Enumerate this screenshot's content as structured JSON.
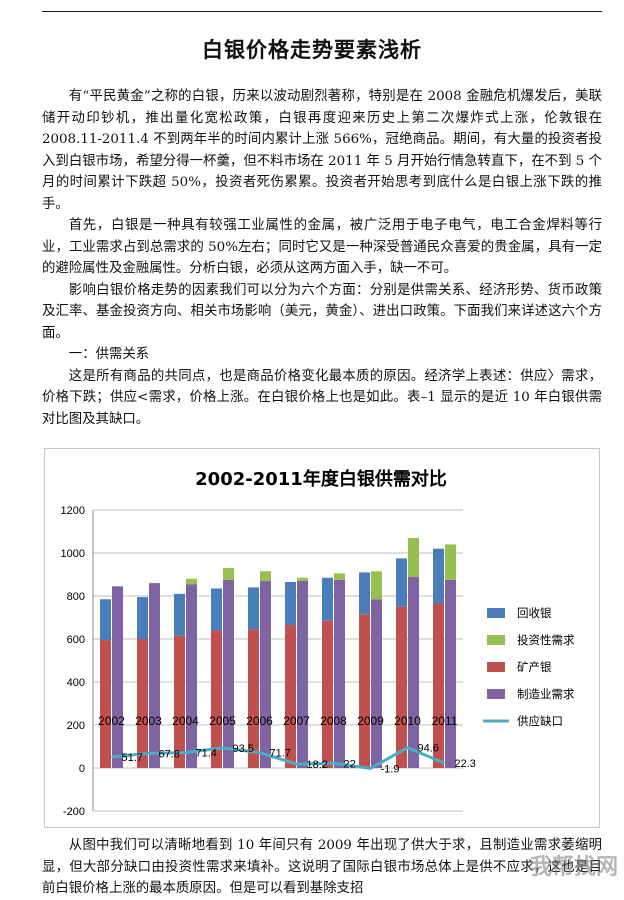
{
  "doc": {
    "title": "白银价格走势要素浅析",
    "paragraphs": [
      "有“平民黄金”之称的白银，历来以波动剧烈著称，特别是在 2008 金融危机爆发后，美联储开动印钞机，推出量化宽松政策，白银再度迎来历史上第二次爆炸式上涨，伦敦银在 2008.11-2011.4 不到两年半的时间内累计上涨 566%，冠绝商品。期间，有大量的投资者投入到白银市场，希望分得一杯羹，但不料市场在 2011 年 5 月开始行情急转直下，在不到 5 个月的时间累计下跌超 50%，投资者死伤累累。投资者开始思考到底什么是白银上涨下跌的推手。",
      "首先，白银是一种具有较强工业属性的金属，被广泛用于电子电气，电工合金焊料等行业，工业需求占到总需求的 50%左右；同时它又是一种深受普通民众喜爱的贵金属，具有一定的避险属性及金融属性。分析白银，必须从这两方面入手，缺一不可。",
      "影响白银价格走势的因素我们可以分为六个方面：分别是供需关系、经济形势、货币政策及汇率、基金投资方向、相关市场影响（美元，黄金）、进出口政策。下面我们来详述这六个方面。",
      "一：供需关系",
      "这是所有商品的共同点，也是商品价格变化最本质的原因。经济学上表述：供应〉需求，价格下跌；供应<需求，价格上涨。在白银价格上也是如此。表–1 显示的是近 10 年白银供需对比图及其缺口。"
    ],
    "bottom_text": "从图中我们可以清晰地看到 10 年间只有 2009 年出现了供大于求，且制造业需求萎缩明显，但大部分缺口由投资性需求来填补。这说明了国际白银市场总体上是供不应求，这也是目前白银价格上涨的最本质原因。但是可以看到基除支招",
    "watermark": "我帮找网"
  },
  "chart_data": {
    "type": "bar",
    "title": "2002-2011年度白银供需对比",
    "categories": [
      "2002",
      "2003",
      "2004",
      "2005",
      "2006",
      "2007",
      "2008",
      "2009",
      "2010",
      "2011"
    ],
    "ylim": [
      -200,
      1200
    ],
    "yticks": [
      "1200",
      "1000",
      "800",
      "600",
      "400",
      "200",
      "0",
      "-200"
    ],
    "series": [
      {
        "name": "回收银",
        "stack": "supply",
        "color": "#4a7ebb",
        "values": [
          190,
          195,
          195,
          195,
          195,
          200,
          200,
          195,
          225,
          255
        ]
      },
      {
        "name": "投资性需求",
        "stack": "demand",
        "color": "#98c050",
        "values": [
          0,
          0,
          25,
          55,
          45,
          15,
          30,
          130,
          180,
          165
        ]
      },
      {
        "name": "矿产银",
        "stack": "supply",
        "color": "#c0504d",
        "values": [
          595,
          600,
          615,
          640,
          645,
          665,
          685,
          715,
          750,
          765
        ]
      },
      {
        "name": "制造业需求",
        "stack": "demand",
        "color": "#8064a2",
        "values": [
          845,
          860,
          855,
          875,
          870,
          870,
          875,
          785,
          890,
          875
        ]
      },
      {
        "name": "供应缺口",
        "type": "line",
        "color": "#4bacc6",
        "values": [
          51.7,
          67.8,
          71.4,
          93.5,
          71.7,
          18.2,
          22,
          -1.9,
          94.6,
          22.3
        ]
      }
    ],
    "data_labels": [
      "51.7",
      "67.8",
      "71.4",
      "93.5",
      "71.7",
      "18.2",
      "22",
      "-1.9",
      "94.6",
      "22.3"
    ],
    "legend": "right"
  }
}
